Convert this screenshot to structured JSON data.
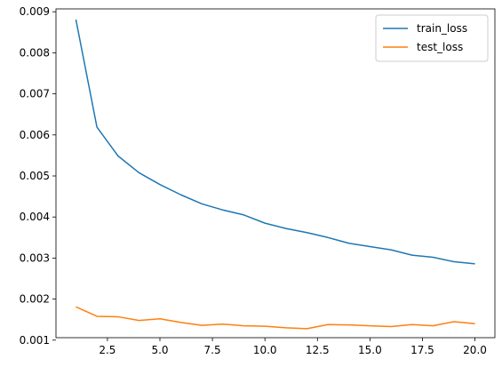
{
  "chart_data": {
    "type": "line",
    "title": "",
    "xlabel": "",
    "ylabel": "",
    "xlim": [
      0.05,
      20.95
    ],
    "ylim": [
      0.00106,
      0.00907
    ],
    "xticks": [
      2.5,
      5.0,
      7.5,
      10.0,
      12.5,
      15.0,
      17.5,
      20.0
    ],
    "xtick_labels": [
      "2.5",
      "5.0",
      "7.5",
      "10.0",
      "12.5",
      "15.0",
      "17.5",
      "20.0"
    ],
    "yticks": [
      0.001,
      0.002,
      0.003,
      0.004,
      0.005,
      0.006,
      0.007,
      0.008,
      0.009
    ],
    "ytick_labels": [
      "0.001",
      "0.002",
      "0.003",
      "0.004",
      "0.005",
      "0.006",
      "0.007",
      "0.008",
      "0.009"
    ],
    "grid": false,
    "legend": "top-right",
    "x": [
      1,
      2,
      3,
      4,
      5,
      6,
      7,
      8,
      9,
      10,
      11,
      12,
      13,
      14,
      15,
      16,
      17,
      18,
      19,
      20
    ],
    "series": [
      {
        "name": "train_loss",
        "color": "#1f77b4",
        "values": [
          0.00881,
          0.00619,
          0.00549,
          0.00508,
          0.00479,
          0.00454,
          0.00432,
          0.00417,
          0.00405,
          0.00385,
          0.00372,
          0.00362,
          0.0035,
          0.00336,
          0.00328,
          0.0032,
          0.00307,
          0.00302,
          0.00291,
          0.00286
        ]
      },
      {
        "name": "test_loss",
        "color": "#ff7f0e",
        "values": [
          0.00181,
          0.00158,
          0.00157,
          0.00148,
          0.00152,
          0.00143,
          0.00136,
          0.00139,
          0.00135,
          0.00134,
          0.0013,
          0.00128,
          0.00138,
          0.00137,
          0.00135,
          0.00133,
          0.00138,
          0.00135,
          0.00145,
          0.0014
        ]
      }
    ]
  }
}
